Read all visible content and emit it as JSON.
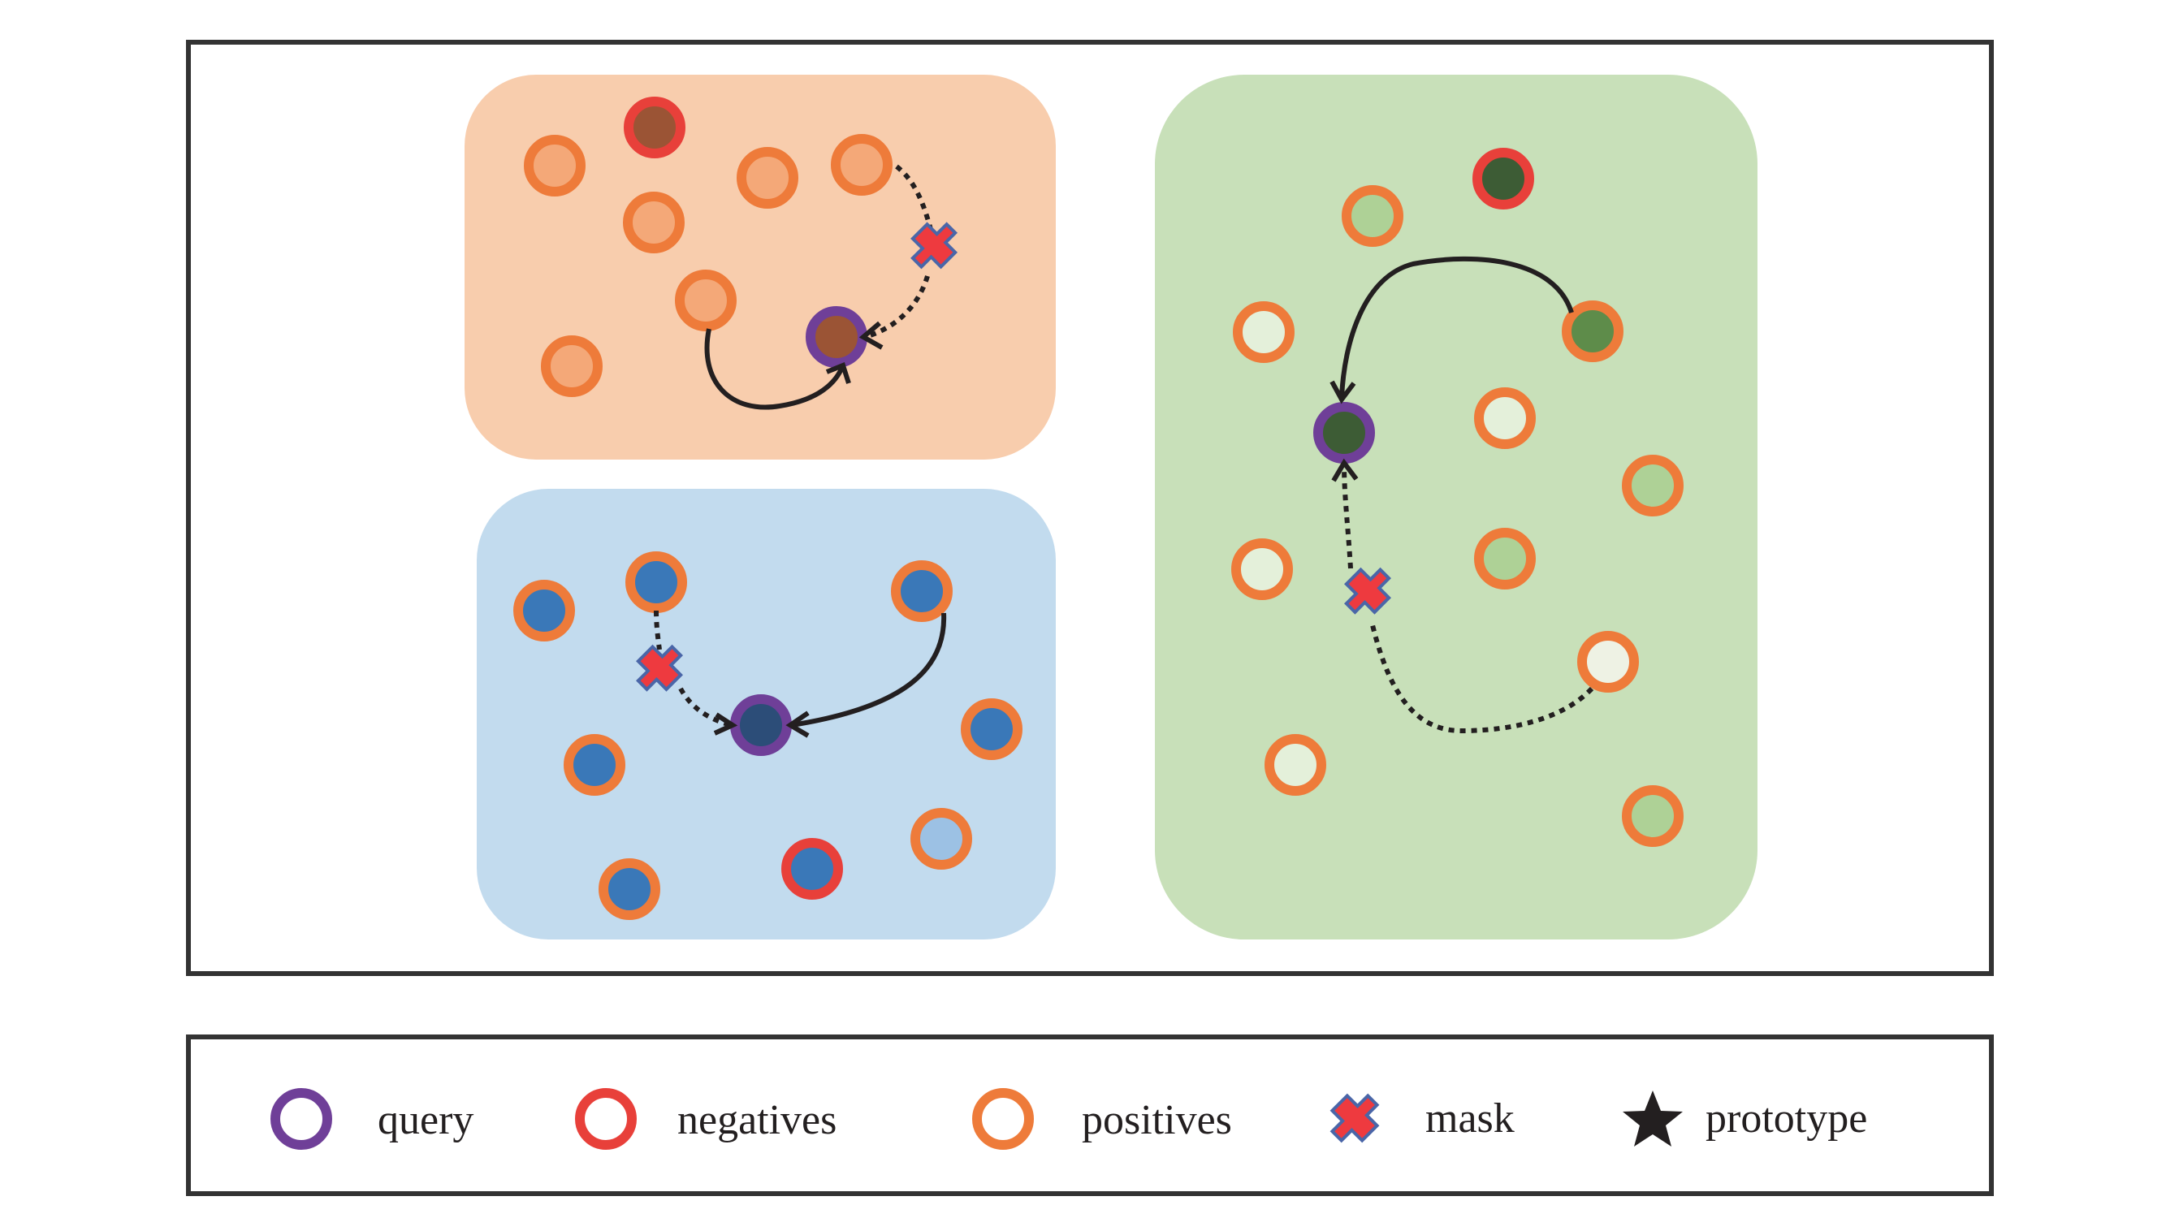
{
  "legend": {
    "query": "query",
    "negatives": "negatives",
    "positives": "positives",
    "mask": "mask",
    "prototype": "prototype"
  },
  "colors": {
    "frame": "#333333",
    "query_ring": "#6f3f98",
    "negative_ring": "#e8403a",
    "positive_ring": "#ee7b3a",
    "mask_fill": "#ee3a3f",
    "mask_stroke": "#4a66a8",
    "arrow": "#231f20",
    "orange_cluster_bg": "#f8cdad",
    "blue_cluster_bg": "#c2dbee",
    "green_cluster_bg": "#c8e0b9"
  }
}
